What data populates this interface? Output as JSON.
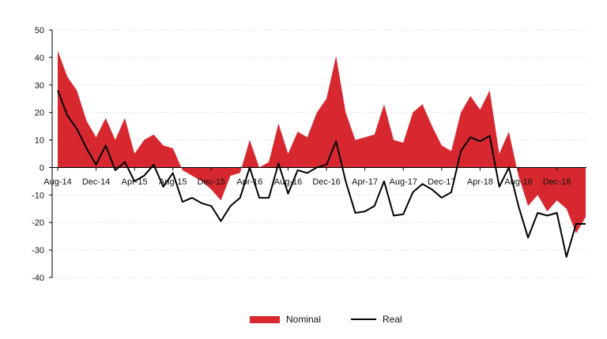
{
  "chart_data": {
    "type": "area",
    "x": [
      "Aug-14",
      "Sep-14",
      "Oct-14",
      "Nov-14",
      "Dec-14",
      "Jan-15",
      "Feb-15",
      "Mar-15",
      "Apr-15",
      "May-15",
      "Jun-15",
      "Jul-15",
      "Aug-15",
      "Sep-15",
      "Oct-15",
      "Nov-15",
      "Dec-15",
      "Jan-16",
      "Feb-16",
      "Mar-16",
      "Apr-16",
      "May-16",
      "Jun-16",
      "Jul-16",
      "Aug-16",
      "Sep-16",
      "Oct-16",
      "Nov-16",
      "Dec-16",
      "Jan-17",
      "Feb-17",
      "Mar-17",
      "Apr-17",
      "May-17",
      "Jun-17",
      "Jul-17",
      "Aug-17",
      "Sep-17",
      "Oct-17",
      "Nov-17",
      "Dec-17",
      "Jan-18",
      "Feb-18",
      "Mar-18",
      "Apr-18",
      "May-18",
      "Jun-18",
      "Jul-18",
      "Aug-18",
      "Sep-18",
      "Oct-18",
      "Nov-18",
      "Dec-18",
      "Jan-19",
      "Feb-19",
      "Mar-19"
    ],
    "x_tick_labels": [
      "Aug-14",
      "Dec-14",
      "Apr-15",
      "Aug-15",
      "Dec-15",
      "Apr-16",
      "Aug-16",
      "Dec-16",
      "Apr-17",
      "Aug-17",
      "Dec-17",
      "Apr-18",
      "Aug-18",
      "Dec-18"
    ],
    "series": [
      {
        "name": "Nominal",
        "kind": "area",
        "color": "#d7282f",
        "values": [
          42.5,
          33,
          28,
          17,
          11,
          18,
          10,
          18,
          5,
          10,
          12,
          8,
          7,
          -1,
          -3,
          -5,
          -8,
          -12,
          -3,
          -2,
          10,
          0,
          2,
          16,
          5,
          13,
          11,
          20,
          25,
          40.5,
          20,
          10,
          11,
          12,
          23,
          10,
          9,
          20,
          23,
          15,
          8,
          6,
          20,
          26,
          21,
          28,
          5,
          13,
          -3,
          -14,
          -10,
          -16,
          -12,
          -15,
          -24,
          -18
        ]
      },
      {
        "name": "Real",
        "kind": "line",
        "color": "#000000",
        "values": [
          28,
          19,
          14,
          7,
          1,
          8,
          -1,
          2,
          -5,
          -3,
          1,
          -7,
          -2,
          -12.5,
          -11,
          -13,
          -14,
          -19.5,
          -14,
          -11,
          0,
          -11,
          -11,
          1.5,
          -9.5,
          -1,
          -2,
          0,
          1,
          9.5,
          -5,
          -16.5,
          -16,
          -14,
          -5,
          -17.5,
          -17,
          -9,
          -6,
          -8,
          -11,
          -9,
          6,
          11,
          9.5,
          11.5,
          -7,
          0,
          -14,
          -25.5,
          -16.5,
          -17.5,
          -16.5,
          -32.5,
          -20.5,
          -20.5
        ]
      }
    ],
    "ylim": [
      -40,
      50
    ],
    "y_ticks": [
      50,
      40,
      30,
      20,
      10,
      0,
      -10,
      -20,
      -30,
      -40
    ],
    "grid": true,
    "legend_position": "bottom",
    "title": "",
    "xlabel": "",
    "ylabel": ""
  }
}
